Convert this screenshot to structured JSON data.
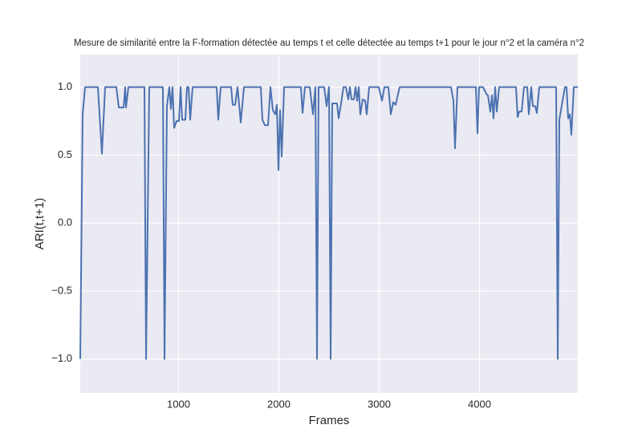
{
  "chart_data": {
    "type": "line",
    "title": "Mesure de similarité entre la F-formation détectée au temps t et celle détectée au temps t+1 pour le jour n°2 et la caméra n°2",
    "xlabel": "Frames",
    "ylabel": "ARI(t,t+1)",
    "xlim": [
      20,
      4980
    ],
    "ylim": [
      -1.25,
      1.24
    ],
    "xticks": [
      1000,
      2000,
      3000,
      4000
    ],
    "yticks": [
      {
        "value": -1.0,
        "label": "−1.0"
      },
      {
        "value": -0.5,
        "label": "−0.5"
      },
      {
        "value": 0.0,
        "label": "0.0"
      },
      {
        "value": 0.5,
        "label": "0.5"
      },
      {
        "value": 1.0,
        "label": "1.0"
      }
    ],
    "grid": true,
    "series": [
      {
        "color": "#4c72b0",
        "x": [
          20,
          44,
          68,
          196,
          236,
          268,
          380,
          404,
          452,
          468,
          476,
          500,
          660,
          676,
          708,
          844,
          860,
          884,
          908,
          924,
          940,
          956,
          980,
          1004,
          1020,
          1036,
          1068,
          1084,
          1100,
          1116,
          1140,
          1380,
          1396,
          1420,
          1524,
          1540,
          1564,
          1588,
          1604,
          1620,
          1652,
          1820,
          1836,
          1860,
          1892,
          1916,
          1940,
          1964,
          1980,
          1996,
          2012,
          2028,
          2052,
          2220,
          2236,
          2260,
          2308,
          2340,
          2364,
          2380,
          2396,
          2452,
          2476,
          2500,
          2516,
          2532,
          2580,
          2596,
          2620,
          2644,
          2668,
          2692,
          2708,
          2724,
          2748,
          2764,
          2780,
          2796,
          2812,
          2836,
          2860,
          2876,
          2900,
          2996,
          3028,
          3052,
          3092,
          3116,
          3140,
          3164,
          3204,
          3716,
          3740,
          3756,
          3780,
          3964,
          3980,
          3996,
          4036,
          4068,
          4084,
          4108,
          4124,
          4140,
          4156,
          4172,
          4196,
          4364,
          4380,
          4396,
          4420,
          4444,
          4476,
          4492,
          4516,
          4532,
          4556,
          4572,
          4596,
          4764,
          4780,
          4796,
          4828,
          4852,
          4868,
          4884,
          4900,
          4916,
          4940,
          4980
        ],
        "values": [
          -1.0,
          0.8,
          1.0,
          1.0,
          0.51,
          1.0,
          1.0,
          0.85,
          0.85,
          1.0,
          0.85,
          1.0,
          1.0,
          -1.0,
          1.0,
          1.0,
          -1.0,
          0.86,
          1.0,
          0.84,
          1.0,
          0.7,
          0.75,
          0.75,
          1.0,
          0.76,
          0.76,
          1.0,
          1.0,
          0.76,
          1.0,
          1.0,
          0.76,
          1.0,
          1.0,
          0.87,
          0.87,
          1.0,
          0.87,
          0.74,
          1.0,
          1.0,
          0.76,
          0.72,
          0.72,
          1.0,
          0.83,
          0.8,
          0.87,
          0.39,
          0.83,
          0.49,
          1.0,
          1.0,
          0.81,
          1.0,
          1.0,
          0.8,
          1.0,
          -1.0,
          1.0,
          1.0,
          0.86,
          1.0,
          -1.0,
          0.88,
          0.88,
          0.77,
          0.88,
          1.0,
          1.0,
          0.91,
          1.0,
          0.91,
          0.91,
          1.0,
          0.9,
          1.0,
          0.8,
          0.91,
          0.9,
          0.8,
          1.0,
          1.0,
          0.9,
          1.0,
          1.0,
          0.8,
          0.89,
          0.87,
          1.0,
          1.0,
          0.9,
          0.55,
          1.0,
          1.0,
          0.66,
          1.0,
          1.0,
          0.95,
          0.94,
          0.82,
          0.94,
          0.77,
          1.0,
          0.82,
          1.0,
          1.0,
          0.78,
          0.82,
          0.82,
          1.0,
          1.0,
          0.8,
          1.0,
          0.86,
          0.86,
          0.81,
          1.0,
          1.0,
          -1.0,
          0.76,
          0.9,
          1.0,
          1.0,
          0.77,
          0.8,
          0.65,
          1.0,
          1.0
        ]
      }
    ]
  }
}
